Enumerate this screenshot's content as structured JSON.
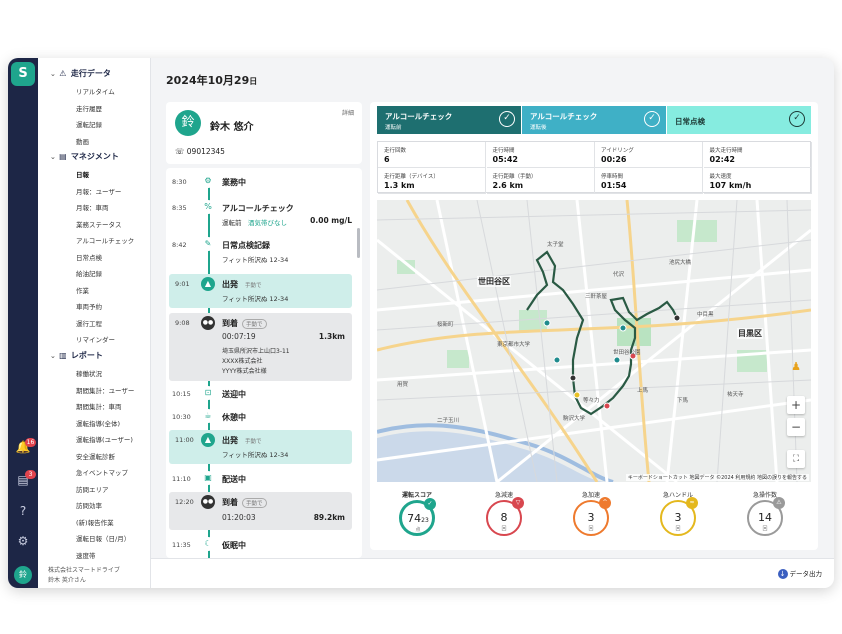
{
  "date": {
    "ymd": "2024年10月29",
    "day": "日"
  },
  "nav": {
    "sections": [
      {
        "label": "走行データ",
        "items": [
          "リアルタイム",
          "走行履歴",
          "運転記録",
          "動画"
        ]
      },
      {
        "label": "マネジメント",
        "items": [
          "日報",
          "月報：ユーザー",
          "月報：車両",
          "業務ステータス",
          "アルコールチェック",
          "日常点検",
          "給油記録",
          "作業",
          "車両予約",
          "運行工程",
          "リマインダー"
        ]
      },
      {
        "label": "レポート",
        "items": [
          "稼働状況",
          "期間集計：ユーザー",
          "期間集計：車両",
          "運転指導(全体)",
          "運転指導(ユーザー)",
          "安全運転診断",
          "急イベントマップ",
          "訪問エリア",
          "訪問効率",
          "(新)報告作業",
          "運転日報（日/月）",
          "速度帯"
        ]
      }
    ],
    "company": "株式会社スマートドライブ",
    "user": "鈴木 英介さん"
  },
  "rail": {
    "logo": "S",
    "notif_count": "16",
    "doc_count": "3",
    "help": "?",
    "avatar": "鈴"
  },
  "driver": {
    "avatar": "鈴",
    "name": "鈴木 悠介",
    "detail_link": "詳細",
    "phone": "09012345"
  },
  "timeline": [
    {
      "time": "8:30",
      "title": "業務中"
    },
    {
      "time": "8:35",
      "title": "アルコールチェック",
      "sub1": "運転前",
      "sub2": "酒気帯びなし",
      "value": "0.00 mg/L"
    },
    {
      "time": "8:42",
      "title": "日常点検記録",
      "sub": "フィット所沢ぬ 12-34"
    },
    {
      "time": "9:01",
      "title": "出発",
      "tag": "手動で",
      "sub": "フィット所沢ぬ 12-34"
    },
    {
      "time": "9:08",
      "title": "到着",
      "tag": "手動で",
      "duration": "00:07:19",
      "distance": "1.3km",
      "addr1": "埼玉県所沢市上山口3-11",
      "addr2": "XXXX株式会社",
      "addr3": "YYYY株式会社様"
    },
    {
      "time": "10:15",
      "title": "送迎中"
    },
    {
      "time": "10:30",
      "title": "休憩中"
    },
    {
      "time": "11:00",
      "title": "出発",
      "tag": "手動で",
      "sub": "フィット所沢ぬ 12-34"
    },
    {
      "time": "11:10",
      "title": "配送中"
    },
    {
      "time": "12:20",
      "title": "到着",
      "tag": "手動で",
      "duration": "01:20:03",
      "distance": "89.2km"
    },
    {
      "time": "11:35",
      "title": "仮眠中"
    }
  ],
  "checks": [
    {
      "title": "アルコールチェック",
      "sub": "運転前",
      "bg": "#1e6f70",
      "fg": "#ffffff"
    },
    {
      "title": "アルコールチェック",
      "sub": "運転後",
      "bg": "#3fb0c6",
      "fg": "#ffffff"
    },
    {
      "title": "日常点検",
      "sub": "",
      "bg": "#86ece0",
      "fg": "#1d3a36"
    }
  ],
  "stats": [
    {
      "label": "走行回数",
      "value": "6"
    },
    {
      "label": "走行時間",
      "value": "05:42"
    },
    {
      "label": "アイドリング",
      "value": "00:26"
    },
    {
      "label": "最大走行時間",
      "value": "02:42"
    },
    {
      "label": "走行距離（デバイス）",
      "value": "1.3 km"
    },
    {
      "label": "走行距離（手動）",
      "value": "2.6 km"
    },
    {
      "label": "停車時間",
      "value": "01:54"
    },
    {
      "label": "最大速度",
      "value": "107 km/h"
    }
  ],
  "map": {
    "area1": "世田谷区",
    "area2": "目黒区",
    "labels": [
      "太子堂",
      "三軒茶屋",
      "東京都市大学",
      "二子玉川",
      "世田谷公園",
      "駒沢大学",
      "桜新町",
      "池尻大橋",
      "代沢",
      "等々力",
      "上馬",
      "下馬",
      "中目黒",
      "祐天寺",
      "用賀"
    ],
    "zoom_in": "+",
    "zoom_out": "−",
    "credit": "キーボードショートカット 地図データ ©2024 利用規約 地図の誤りを報告する"
  },
  "scores": [
    {
      "label": "運転スコア",
      "value": "74",
      "sub": "23",
      "unit": "点",
      "color": "#1fa58d",
      "badge": "✓",
      "fill": 0.74
    },
    {
      "label": "急減速",
      "value": "8",
      "unit": "回",
      "color": "#d8474f",
      "badge": "▽"
    },
    {
      "label": "急加速",
      "value": "3",
      "unit": "回",
      "color": "#ee7a2e",
      "badge": "^"
    },
    {
      "label": "急ハンドル",
      "value": "3",
      "unit": "回",
      "color": "#e4b81e",
      "badge": "≈"
    },
    {
      "label": "急操作数",
      "value": "14",
      "unit": "回",
      "color": "#9a9a9a",
      "badge": "⚠"
    }
  ],
  "footer": {
    "export": "データ出力"
  }
}
